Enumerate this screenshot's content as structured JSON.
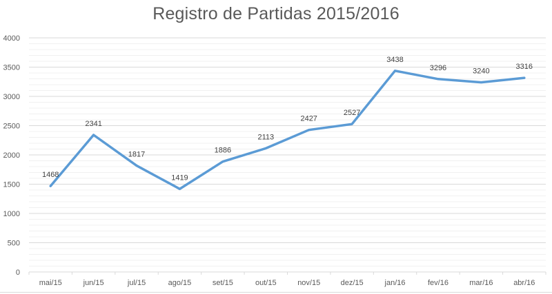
{
  "chart": {
    "title": "Registro de Partidas 2015/2016"
  },
  "colors": {
    "line": "#5b9bd5",
    "major_grid": "#d9d9d9",
    "minor_grid": "#f0f0f0",
    "tick_text": "#595959",
    "label_text": "#404040"
  },
  "chart_data": {
    "type": "line",
    "title": "Registro de Partidas 2015/2016",
    "xlabel": "",
    "ylabel": "",
    "categories": [
      "mai/15",
      "jun/15",
      "jul/15",
      "ago/15",
      "set/15",
      "out/15",
      "nov/15",
      "dez/15",
      "jan/16",
      "fev/16",
      "mar/16",
      "abr/16"
    ],
    "series": [
      {
        "name": "Partidas",
        "values": [
          1468,
          2341,
          1817,
          1419,
          1886,
          2113,
          2427,
          2527,
          3438,
          3296,
          3240,
          3316
        ]
      }
    ],
    "data_labels": true,
    "ylim": [
      0,
      4000
    ],
    "yticks": [
      0,
      500,
      1000,
      1500,
      2000,
      2500,
      3000,
      3500,
      4000
    ],
    "minor_grid_step": 100,
    "grid": true,
    "legend": "none"
  }
}
